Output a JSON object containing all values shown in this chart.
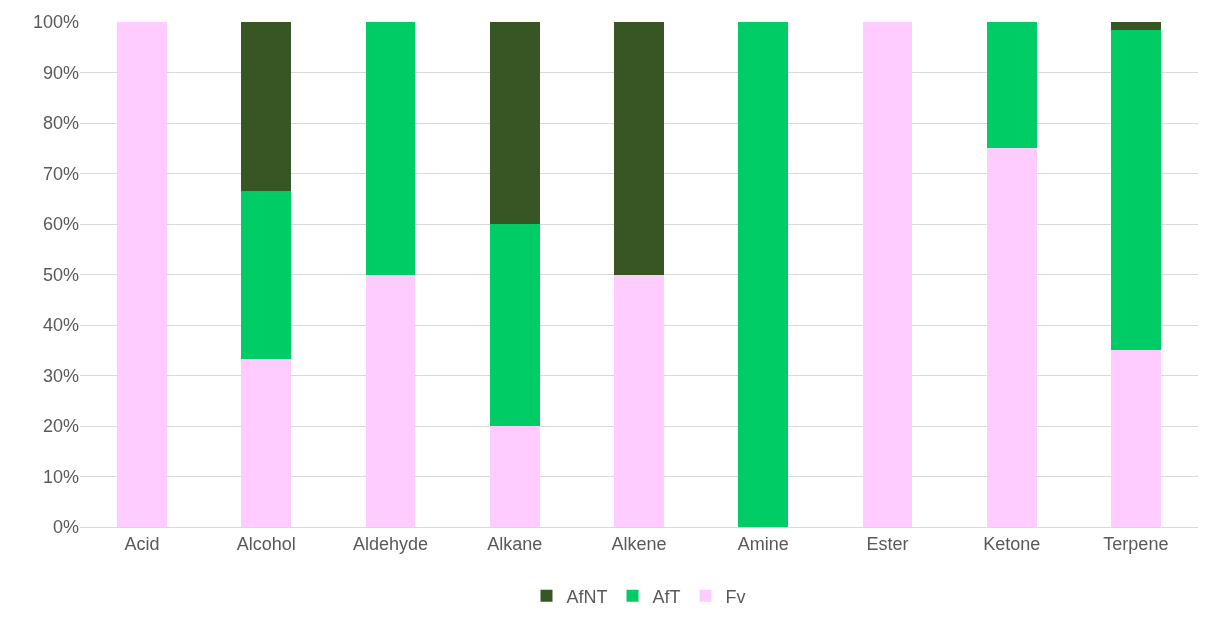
{
  "chart_data": {
    "type": "bar",
    "stacked": true,
    "categories": [
      "Acid",
      "Alcohol",
      "Aldehyde",
      "Alkane",
      "Alkene",
      "Amine",
      "Ester",
      "Ketone",
      "Terpene"
    ],
    "series": [
      {
        "name": "Fv",
        "color": "#ffccff",
        "values": [
          100,
          33.3,
          50,
          20,
          50,
          0,
          100,
          75,
          35
        ]
      },
      {
        "name": "AfT",
        "color": "#00cc66",
        "values": [
          0,
          33.3,
          50,
          40,
          0,
          100,
          0,
          25,
          63.4
        ]
      },
      {
        "name": "AfNT",
        "color": "#375623",
        "values": [
          0,
          33.4,
          0,
          40,
          50,
          0,
          0,
          0,
          1.6
        ]
      }
    ],
    "ylim": [
      0,
      100
    ],
    "yticks": [
      {
        "value": 0,
        "label": "0%"
      },
      {
        "value": 10,
        "label": "10%"
      },
      {
        "value": 20,
        "label": "20%"
      },
      {
        "value": 30,
        "label": "30%"
      },
      {
        "value": 40,
        "label": "40%"
      },
      {
        "value": 50,
        "label": "50%"
      },
      {
        "value": 60,
        "label": "60%"
      },
      {
        "value": 70,
        "label": "70%"
      },
      {
        "value": 80,
        "label": "80%"
      },
      {
        "value": 90,
        "label": "90%"
      },
      {
        "value": 100,
        "label": "100%"
      }
    ],
    "grid": "y",
    "legend": "bottom"
  }
}
